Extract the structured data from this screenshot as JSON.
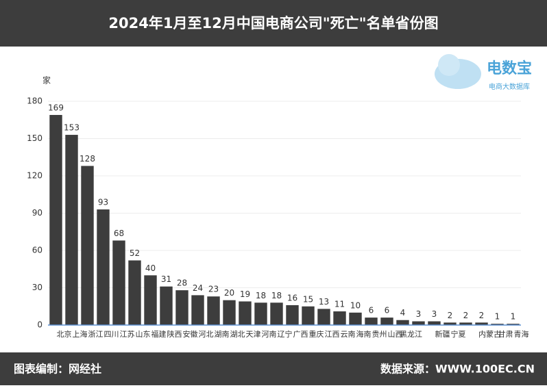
{
  "chart_data": {
    "type": "bar",
    "title": "2024年1月至12月中国电商公司\"死亡\"名单省份图",
    "y_axis_label": "家",
    "categories": [
      "北京",
      "上海",
      "浙江",
      "四川",
      "江苏",
      "山东",
      "福建",
      "陕西",
      "安徽",
      "河北",
      "湖南",
      "湖北",
      "天津",
      "河南",
      "辽宁",
      "广西",
      "重庆",
      "江西",
      "云南",
      "海南",
      "贵州",
      "山西",
      "黑龙江",
      null,
      "新疆",
      "宁夏",
      null,
      "内蒙古",
      "甘肃",
      "青海"
    ],
    "values": [
      169,
      153,
      128,
      93,
      68,
      52,
      40,
      31,
      28,
      24,
      23,
      20,
      19,
      18,
      18,
      16,
      15,
      13,
      11,
      10,
      6,
      6,
      4,
      3,
      3,
      2,
      2,
      2,
      1,
      1
    ],
    "color": "#3d3d3d",
    "ylim": [
      0,
      180
    ],
    "yticks": [
      0,
      30,
      60,
      90,
      120,
      150,
      180
    ],
    "grid": true
  },
  "logo": {
    "name": "电数宝",
    "subtitle": "电商大数据库"
  },
  "footer": {
    "editor": "图表编制：网经社",
    "source": "数据来源：WWW.100EC.CN"
  }
}
